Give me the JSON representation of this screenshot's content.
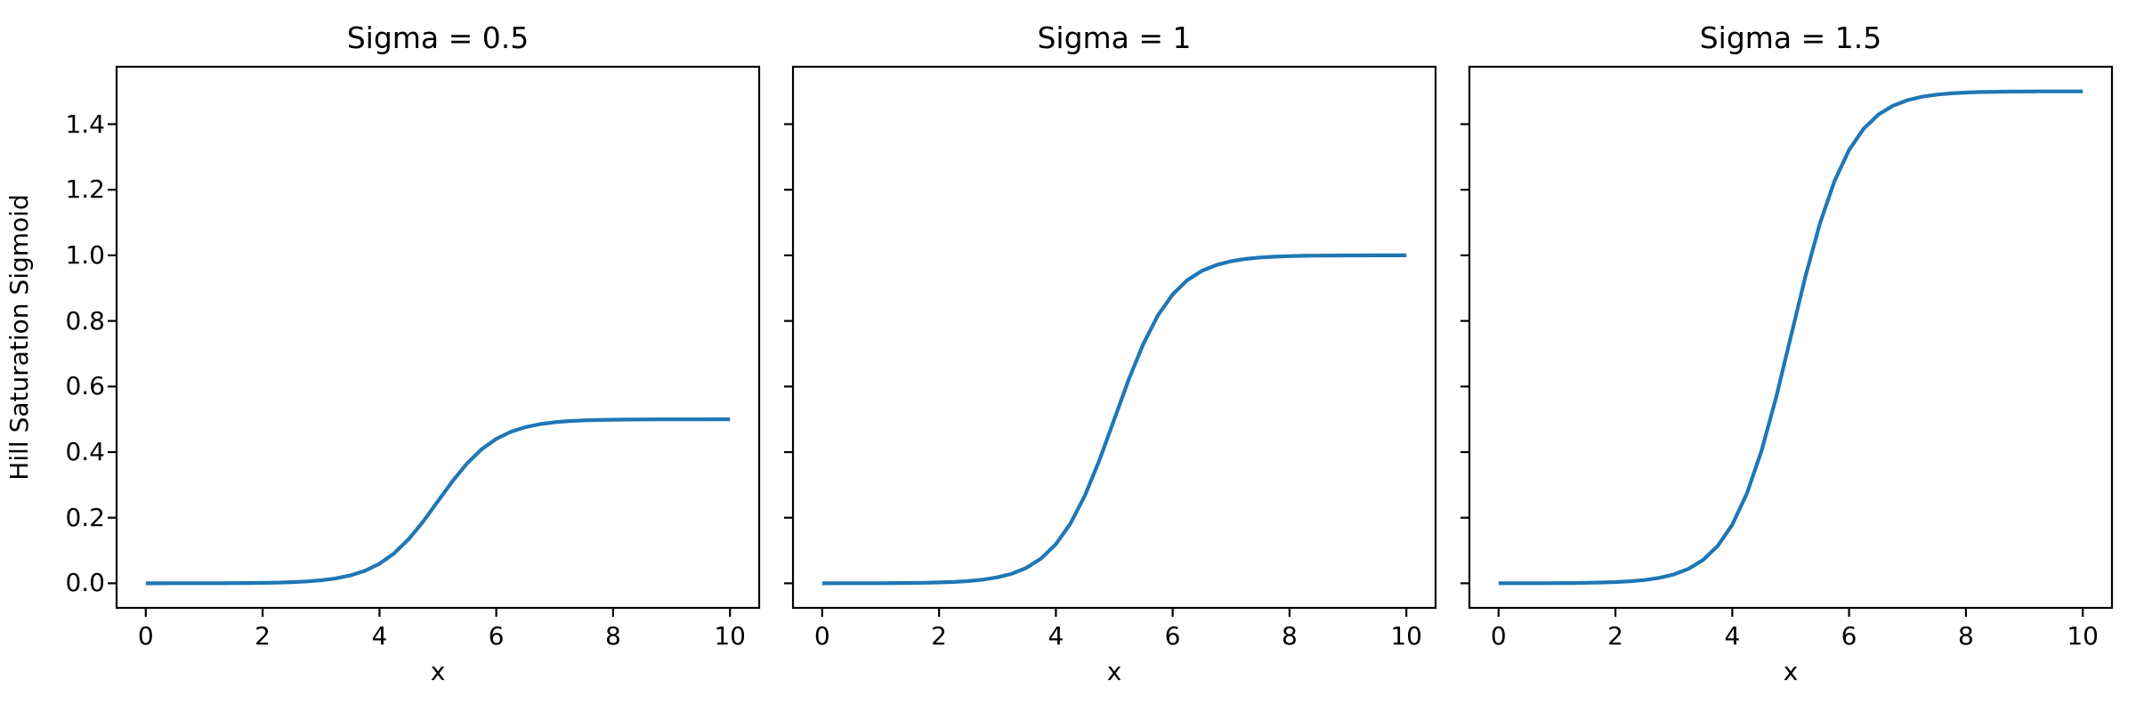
{
  "figure": {
    "background": "#ffffff",
    "shared_ylabel": "Hill Saturation Sigmoid",
    "text_color": "#000000",
    "spine_color": "#000000"
  },
  "chart_data": [
    {
      "type": "line",
      "title": "Sigma = 0.5",
      "xlabel": "x",
      "ylabel": "Hill Saturation Sigmoid",
      "sigma": 0.5,
      "line_color": "#1f77b4",
      "xlim": [
        -0.5,
        10.5
      ],
      "ylim": [
        -0.075,
        1.575
      ],
      "xticks": [
        0,
        2,
        4,
        6,
        8,
        10
      ],
      "xticklabels": [
        "0",
        "2",
        "4",
        "6",
        "8",
        "10"
      ],
      "yticks": [
        0.0,
        0.2,
        0.4,
        0.6,
        0.8,
        1.0,
        1.2,
        1.4
      ],
      "yticklabels": [
        "0.0",
        "0.2",
        "0.4",
        "0.6",
        "0.8",
        "1.0",
        "1.2",
        "1.4"
      ],
      "show_yticklabels": true,
      "grid": false,
      "legend": null,
      "x": [
        0,
        0.25,
        0.5,
        0.75,
        1,
        1.25,
        1.5,
        1.75,
        2,
        2.25,
        2.5,
        2.75,
        3,
        3.25,
        3.5,
        3.75,
        4,
        4.25,
        4.5,
        4.75,
        5,
        5.25,
        5.5,
        5.75,
        6,
        6.25,
        6.5,
        6.75,
        7,
        7.25,
        7.5,
        7.75,
        8,
        8.25,
        8.5,
        8.75,
        9,
        9.25,
        9.5,
        9.75,
        10
      ],
      "y": [
        0.0,
        0.0,
        0.0001,
        0.0001,
        0.0002,
        0.0003,
        0.0005,
        0.0008,
        0.0012,
        0.002,
        0.0033,
        0.0055,
        0.009,
        0.0147,
        0.0237,
        0.0379,
        0.0596,
        0.0912,
        0.1345,
        0.1888,
        0.25,
        0.3112,
        0.3655,
        0.4088,
        0.4404,
        0.4621,
        0.4763,
        0.4853,
        0.491,
        0.4945,
        0.4967,
        0.498,
        0.4988,
        0.4992,
        0.4995,
        0.4997,
        0.4998,
        0.4999,
        0.4999,
        0.5,
        0.5
      ]
    },
    {
      "type": "line",
      "title": "Sigma = 1",
      "xlabel": "x",
      "ylabel": "",
      "sigma": 1.0,
      "line_color": "#1f77b4",
      "xlim": [
        -0.5,
        10.5
      ],
      "ylim": [
        -0.075,
        1.575
      ],
      "xticks": [
        0,
        2,
        4,
        6,
        8,
        10
      ],
      "xticklabels": [
        "0",
        "2",
        "4",
        "6",
        "8",
        "10"
      ],
      "yticks": [
        0.0,
        0.2,
        0.4,
        0.6,
        0.8,
        1.0,
        1.2,
        1.4
      ],
      "yticklabels": [],
      "show_yticklabels": false,
      "grid": false,
      "legend": null,
      "x": [
        0,
        0.25,
        0.5,
        0.75,
        1,
        1.25,
        1.5,
        1.75,
        2,
        2.25,
        2.5,
        2.75,
        3,
        3.25,
        3.5,
        3.75,
        4,
        4.25,
        4.5,
        4.75,
        5,
        5.25,
        5.5,
        5.75,
        6,
        6.25,
        6.5,
        6.75,
        7,
        7.25,
        7.5,
        7.75,
        8,
        8.25,
        8.5,
        8.75,
        9,
        9.25,
        9.5,
        9.75,
        10
      ],
      "y": [
        0.0,
        0.0001,
        0.0001,
        0.0002,
        0.0003,
        0.0006,
        0.0009,
        0.0015,
        0.0025,
        0.0041,
        0.0067,
        0.011,
        0.018,
        0.0293,
        0.0474,
        0.0759,
        0.1192,
        0.1824,
        0.2689,
        0.3775,
        0.5,
        0.6225,
        0.7311,
        0.8176,
        0.8808,
        0.9241,
        0.9526,
        0.9707,
        0.982,
        0.989,
        0.9933,
        0.9959,
        0.9975,
        0.9985,
        0.9991,
        0.9994,
        0.9997,
        0.9998,
        0.9999,
        0.9999,
        1.0
      ]
    },
    {
      "type": "line",
      "title": "Sigma = 1.5",
      "xlabel": "x",
      "ylabel": "",
      "sigma": 1.5,
      "line_color": "#1f77b4",
      "xlim": [
        -0.5,
        10.5
      ],
      "ylim": [
        -0.075,
        1.575
      ],
      "xticks": [
        0,
        2,
        4,
        6,
        8,
        10
      ],
      "xticklabels": [
        "0",
        "2",
        "4",
        "6",
        "8",
        "10"
      ],
      "yticks": [
        0.0,
        0.2,
        0.4,
        0.6,
        0.8,
        1.0,
        1.2,
        1.4
      ],
      "yticklabels": [],
      "show_yticklabels": false,
      "grid": false,
      "legend": null,
      "x": [
        0,
        0.25,
        0.5,
        0.75,
        1,
        1.25,
        1.5,
        1.75,
        2,
        2.25,
        2.5,
        2.75,
        3,
        3.25,
        3.5,
        3.75,
        4,
        4.25,
        4.5,
        4.75,
        5,
        5.25,
        5.5,
        5.75,
        6,
        6.25,
        6.5,
        6.75,
        7,
        7.25,
        7.5,
        7.75,
        8,
        8.25,
        8.5,
        8.75,
        9,
        9.25,
        9.5,
        9.75,
        10
      ],
      "y": [
        0.0001,
        0.0001,
        0.0002,
        0.0003,
        0.0005,
        0.0008,
        0.0014,
        0.0023,
        0.0037,
        0.0061,
        0.01,
        0.0165,
        0.027,
        0.044,
        0.0711,
        0.1138,
        0.1788,
        0.2736,
        0.4034,
        0.5663,
        0.75,
        0.9337,
        1.0966,
        1.2264,
        1.3212,
        1.3862,
        1.4289,
        1.456,
        1.473,
        1.4835,
        1.49,
        1.4939,
        1.4963,
        1.4978,
        1.4986,
        1.4992,
        1.4995,
        1.4997,
        1.4998,
        1.4999,
        1.4999
      ]
    }
  ]
}
